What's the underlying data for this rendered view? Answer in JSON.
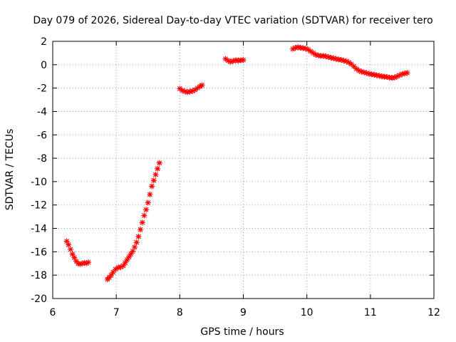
{
  "chart_data": {
    "type": "scatter",
    "title": "Day 079 of 2026, Sidereal Day-to-day VTEC variation (SDTVAR) for receiver tero",
    "xlabel": "GPS time / hours",
    "ylabel": "SDTVAR / TECUs",
    "xlim": [
      6,
      12
    ],
    "ylim": [
      -20,
      2
    ],
    "xticks": [
      6,
      7,
      8,
      9,
      10,
      11,
      12
    ],
    "yticks": [
      -20,
      -18,
      -16,
      -14,
      -12,
      -10,
      -8,
      -6,
      -4,
      -2,
      0,
      2
    ],
    "grid": true,
    "marker": "plus-cross",
    "color": "#ff0000",
    "series": [
      {
        "name": "segment-1",
        "points": [
          [
            6.22,
            -15.1
          ],
          [
            6.25,
            -15.4
          ],
          [
            6.28,
            -15.8
          ],
          [
            6.31,
            -16.2
          ],
          [
            6.34,
            -16.5
          ],
          [
            6.37,
            -16.8
          ],
          [
            6.4,
            -17.0
          ],
          [
            6.43,
            -17.05
          ],
          [
            6.46,
            -17.0
          ],
          [
            6.5,
            -16.95
          ],
          [
            6.53,
            -16.98
          ],
          [
            6.56,
            -16.9
          ]
        ]
      },
      {
        "name": "segment-2",
        "points": [
          [
            6.86,
            -18.35
          ],
          [
            6.89,
            -18.2
          ],
          [
            6.92,
            -18.0
          ],
          [
            6.95,
            -17.75
          ],
          [
            6.99,
            -17.5
          ],
          [
            7.03,
            -17.35
          ],
          [
            7.07,
            -17.3
          ],
          [
            7.11,
            -17.2
          ],
          [
            7.14,
            -16.95
          ],
          [
            7.17,
            -16.7
          ],
          [
            7.2,
            -16.45
          ],
          [
            7.23,
            -16.2
          ],
          [
            7.26,
            -15.95
          ],
          [
            7.29,
            -15.6
          ],
          [
            7.32,
            -15.2
          ],
          [
            7.35,
            -14.7
          ],
          [
            7.38,
            -14.1
          ],
          [
            7.41,
            -13.5
          ],
          [
            7.44,
            -12.9
          ],
          [
            7.47,
            -12.4
          ],
          [
            7.5,
            -11.8
          ],
          [
            7.53,
            -11.1
          ],
          [
            7.56,
            -10.4
          ],
          [
            7.59,
            -9.9
          ],
          [
            7.62,
            -9.4
          ],
          [
            7.65,
            -8.9
          ],
          [
            7.68,
            -8.4
          ]
        ]
      },
      {
        "name": "segment-3",
        "points": [
          [
            8.0,
            -2.05
          ],
          [
            8.04,
            -2.2
          ],
          [
            8.08,
            -2.28
          ],
          [
            8.12,
            -2.35
          ],
          [
            8.16,
            -2.3
          ],
          [
            8.2,
            -2.25
          ],
          [
            8.24,
            -2.15
          ],
          [
            8.28,
            -2.0
          ],
          [
            8.32,
            -1.85
          ],
          [
            8.35,
            -1.75
          ]
        ]
      },
      {
        "name": "segment-4",
        "points": [
          [
            8.72,
            0.5
          ],
          [
            8.76,
            0.35
          ],
          [
            8.8,
            0.25
          ],
          [
            8.84,
            0.32
          ],
          [
            8.88,
            0.38
          ],
          [
            8.92,
            0.35
          ],
          [
            8.96,
            0.38
          ],
          [
            9.0,
            0.4
          ]
        ]
      },
      {
        "name": "segment-5",
        "points": [
          [
            9.78,
            1.35
          ],
          [
            9.82,
            1.45
          ],
          [
            9.86,
            1.5
          ],
          [
            9.9,
            1.45
          ],
          [
            9.94,
            1.42
          ],
          [
            9.98,
            1.38
          ],
          [
            10.02,
            1.3
          ],
          [
            10.06,
            1.15
          ],
          [
            10.1,
            1.0
          ],
          [
            10.14,
            0.85
          ],
          [
            10.18,
            0.8
          ],
          [
            10.22,
            0.75
          ],
          [
            10.26,
            0.75
          ],
          [
            10.3,
            0.72
          ],
          [
            10.34,
            0.65
          ],
          [
            10.38,
            0.6
          ],
          [
            10.42,
            0.55
          ],
          [
            10.46,
            0.5
          ],
          [
            10.5,
            0.45
          ],
          [
            10.54,
            0.42
          ],
          [
            10.58,
            0.35
          ],
          [
            10.62,
            0.3
          ],
          [
            10.66,
            0.2
          ],
          [
            10.7,
            0.05
          ],
          [
            10.74,
            -0.15
          ],
          [
            10.78,
            -0.35
          ],
          [
            10.82,
            -0.5
          ],
          [
            10.86,
            -0.6
          ],
          [
            10.9,
            -0.65
          ],
          [
            10.94,
            -0.72
          ],
          [
            10.98,
            -0.78
          ],
          [
            11.02,
            -0.82
          ],
          [
            11.06,
            -0.86
          ],
          [
            11.1,
            -0.9
          ],
          [
            11.14,
            -0.95
          ],
          [
            11.18,
            -1.0
          ],
          [
            11.22,
            -1.02
          ],
          [
            11.26,
            -1.05
          ],
          [
            11.3,
            -1.1
          ],
          [
            11.34,
            -1.12
          ],
          [
            11.38,
            -1.1
          ],
          [
            11.42,
            -1.0
          ],
          [
            11.46,
            -0.9
          ],
          [
            11.5,
            -0.8
          ],
          [
            11.54,
            -0.75
          ],
          [
            11.58,
            -0.7
          ]
        ]
      }
    ]
  }
}
